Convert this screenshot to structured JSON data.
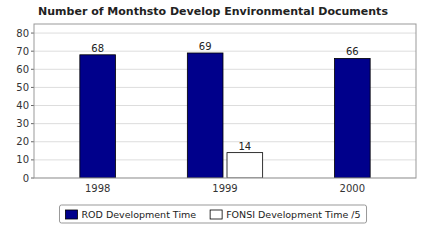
{
  "chart_data": {
    "type": "bar",
    "title": "Number of Monthsto Develop Environmental Documents",
    "categories": [
      "1998",
      "1999",
      "2000"
    ],
    "series": [
      {
        "name": "ROD Development Time",
        "color": "#00008B",
        "values": [
          68,
          69,
          66
        ]
      },
      {
        "name": "FONSI Development Time /5",
        "color": "#FFFFFF",
        "values": [
          null,
          14,
          null
        ]
      }
    ],
    "ylim": [
      0,
      85
    ],
    "yticks": [
      0,
      10,
      20,
      30,
      40,
      50,
      60,
      70,
      80
    ],
    "grid": true,
    "legend": "bottom",
    "data_labels": true
  }
}
